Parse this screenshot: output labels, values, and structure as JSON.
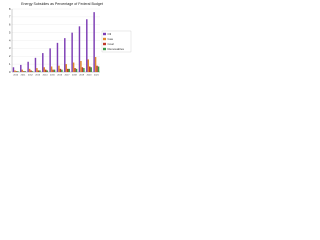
{
  "chart_data": {
    "type": "bar",
    "title": "Energy Subsidies as Percentage of Federal Budget",
    "categories": [
      "2010",
      "2011",
      "2012",
      "2013",
      "2014",
      "2015",
      "2016",
      "2017",
      "2018",
      "2019",
      "2020",
      "2021"
    ],
    "series": [
      {
        "name": "Oil",
        "color": "#7e3fb5",
        "values": [
          0.6,
          0.9,
          1.3,
          1.8,
          2.4,
          3.0,
          3.7,
          4.3,
          5.0,
          5.8,
          6.7,
          7.6
        ]
      },
      {
        "name": "Gas",
        "color": "#e08a2e",
        "values": [
          0.2,
          0.3,
          0.4,
          0.5,
          0.6,
          0.7,
          0.8,
          1.0,
          1.2,
          1.4,
          1.6,
          1.9
        ]
      },
      {
        "name": "Coal",
        "color": "#c0392b",
        "values": [
          0.1,
          0.1,
          0.2,
          0.2,
          0.3,
          0.3,
          0.4,
          0.4,
          0.5,
          0.6,
          0.7,
          0.8
        ]
      },
      {
        "name": "Renewables",
        "color": "#3a9a4a",
        "values": [
          0.1,
          0.1,
          0.1,
          0.2,
          0.2,
          0.3,
          0.3,
          0.4,
          0.4,
          0.5,
          0.6,
          0.7
        ]
      }
    ],
    "ylim": [
      0,
      8
    ],
    "yticks": [
      0,
      1,
      2,
      3,
      4,
      5,
      6,
      7,
      8
    ],
    "grid": true
  }
}
